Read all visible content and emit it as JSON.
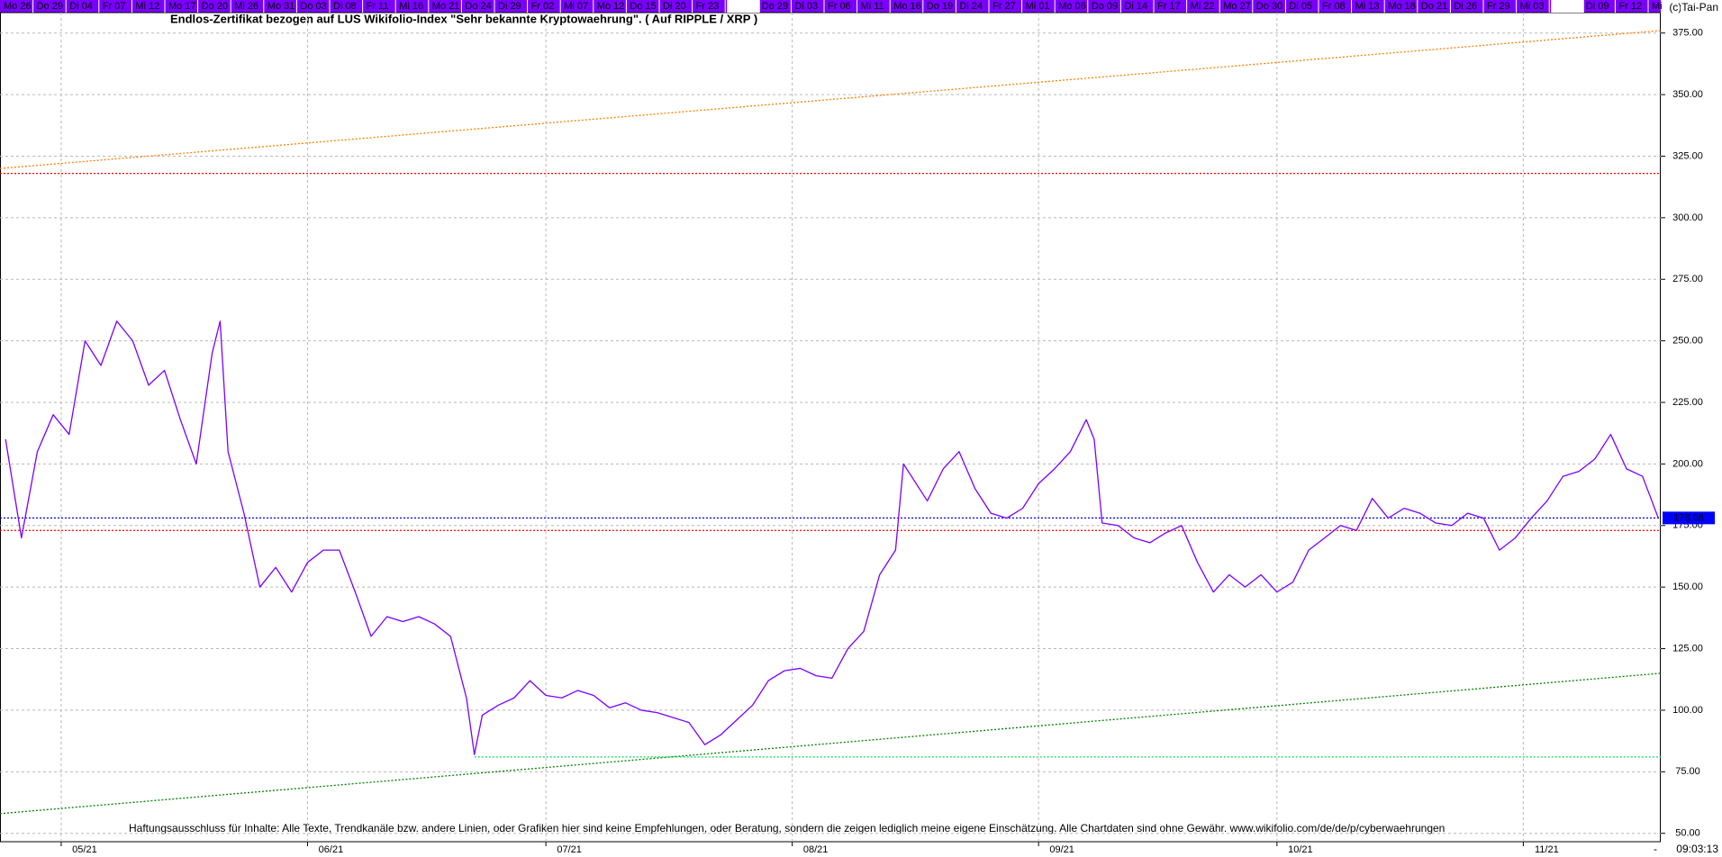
{
  "chart_data": {
    "type": "line",
    "title": "Endlos-Zertifikat bezogen auf LUS Wikifolio-Index \"Sehr bekannte Kryptowaehrung\". ( Auf RIPPLE / XRP )",
    "source": "(c)Tai-Pan",
    "disclaimer": "Haftungsausschluss für Inhalte: Alle Texte, Trendkanäle bzw. andere Linien, oder Grafiken hier sind keine Empfehlungen, oder Beratung, sondern die zeigen lediglich meine eigene Einschätzung. Alle Chartdaten sind ohne Gewähr.  www.wikifolio.com/de/de/p/cyberwaehrungen",
    "timestamp": "09:03:13",
    "end_marker": "-",
    "top_dates": [
      "Mo 26",
      "Do 29",
      "Di 04",
      "Fr 07",
      "Mi 12",
      "Mo 17",
      "Do 20",
      "Mi 26",
      "Mo 31",
      "Do 03",
      "Di 08",
      "Fr 11",
      "Mi 16",
      "Mo 21",
      "Do 24",
      "Di 29",
      "Fr 02",
      "Mi 07",
      "Mo 12",
      "Do 15",
      "Di 20",
      "Fr 23",
      null,
      "Do 29",
      "Di 03",
      "Fr 06",
      "Mi 11",
      "Mo 16",
      "Do 19",
      "Di 24",
      "Fr 27",
      "Mi 01",
      "Mo 06",
      "Do 09",
      "Di 14",
      "Fr 17",
      "Mi 22",
      "Mo 27",
      "Do 30",
      "Di 05",
      "Fr 08",
      "Mi 13",
      "Mo 18",
      "Do 21",
      "Di 26",
      "Fr 29",
      "Mi 03",
      null,
      "Di 09",
      "Fr 12",
      "Mi"
    ],
    "x": [
      114,
      116,
      118,
      120,
      122,
      124,
      126,
      128,
      130,
      132,
      134,
      136,
      138,
      140,
      141,
      142,
      144,
      146,
      148,
      150,
      152,
      154,
      156,
      158,
      160,
      162,
      164,
      166,
      168,
      170,
      172,
      173,
      174,
      176,
      178,
      180,
      182,
      184,
      186,
      188,
      190,
      192,
      194,
      196,
      198,
      200,
      202,
      204,
      206,
      208,
      210,
      212,
      214,
      216,
      218,
      220,
      222,
      224,
      226,
      227,
      228,
      230,
      232,
      234,
      236,
      238,
      240,
      242,
      244,
      246,
      248,
      250,
      251,
      252,
      254,
      256,
      258,
      260,
      262,
      264,
      266,
      268,
      270,
      272,
      274,
      276,
      278,
      280,
      282,
      284,
      286,
      288,
      290,
      292,
      294,
      296,
      298,
      300,
      302,
      304,
      306,
      308,
      310,
      312,
      314,
      316,
      318,
      320,
      322
    ],
    "series": [
      {
        "color": "#7a00ff",
        "values": [
          210,
          170,
          205,
          220,
          212,
          250,
          240,
          258,
          250,
          232,
          238,
          218,
          200,
          245,
          258,
          205,
          180,
          150,
          158,
          148,
          160,
          165,
          165,
          148,
          130,
          138,
          136,
          138,
          135,
          130,
          105,
          82,
          98,
          102,
          105,
          112,
          106,
          105,
          108,
          106,
          101,
          103,
          100,
          99,
          97,
          95,
          86,
          90,
          96,
          102,
          112,
          116,
          117,
          114,
          113,
          125,
          132,
          155,
          165,
          200,
          195,
          185,
          198,
          205,
          190,
          180,
          178,
          182,
          192,
          198,
          205,
          218,
          210,
          176,
          175,
          170,
          168,
          172,
          175,
          160,
          148,
          155,
          150,
          155,
          148,
          152,
          165,
          170,
          175,
          173,
          186,
          178,
          182,
          180,
          176,
          175,
          180,
          178,
          165,
          170,
          178,
          185,
          195,
          197,
          202,
          212,
          198,
          195,
          178
        ]
      }
    ],
    "xlim": [
      113.3,
      322.3
    ],
    "xticks": [
      {
        "value": 121,
        "label": "05/21"
      },
      {
        "value": 152,
        "label": "06/21"
      },
      {
        "value": 182,
        "label": "07/21"
      },
      {
        "value": 213,
        "label": "08/21"
      },
      {
        "value": 244,
        "label": "09/21"
      },
      {
        "value": 274,
        "label": "10/21"
      },
      {
        "value": 305,
        "label": "11/21"
      }
    ],
    "ylim": [
      46.6,
      383.3
    ],
    "yticks": [
      {
        "value": 50,
        "label": "50.00"
      },
      {
        "value": 75,
        "label": "75.00"
      },
      {
        "value": 100,
        "label": "100.00"
      },
      {
        "value": 125,
        "label": "125.00"
      },
      {
        "value": 150,
        "label": "150.00"
      },
      {
        "value": 175,
        "label": "175.00"
      },
      {
        "value": 200,
        "label": "200.00"
      },
      {
        "value": 225,
        "label": "225.00"
      },
      {
        "value": 250,
        "label": "250.00"
      },
      {
        "value": 275,
        "label": "275.00"
      },
      {
        "value": 300,
        "label": "300.00"
      },
      {
        "value": 325,
        "label": "325.00"
      },
      {
        "value": 350,
        "label": "350.00"
      },
      {
        "value": 375,
        "label": "375.00"
      }
    ],
    "grid": true,
    "hlines": [
      {
        "value": 318,
        "color": "#ff0000"
      },
      {
        "value": 173,
        "color": "#ff0000"
      },
      {
        "value": 178.08,
        "color": "#0000ff",
        "show_label": true
      },
      {
        "value": 81,
        "color": "#00dd55",
        "from": 173
      }
    ],
    "trendlines": [
      {
        "x": [
          113.3,
          322.3
        ],
        "y": [
          320,
          376
        ],
        "color": "#ff7f00"
      },
      {
        "x": [
          113.3,
          322.3
        ],
        "y": [
          58,
          115
        ],
        "color": "#008000"
      }
    ]
  }
}
